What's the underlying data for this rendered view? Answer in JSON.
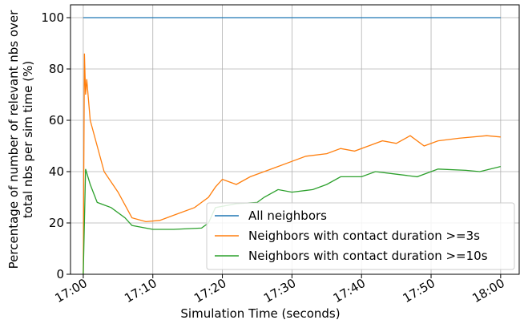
{
  "chart_data": {
    "type": "line",
    "x_label": "Simulation Time (seconds)",
    "y_label": [
      "Percentage of number of relevant nbs over",
      "total nbs per sim time (%)"
    ],
    "xlim": [
      "16:58:10",
      "18:02:40"
    ],
    "xticks": [
      "17:00",
      "17:10",
      "17:20",
      "17:30",
      "17:40",
      "17:50",
      "18:00"
    ],
    "ylim": [
      0,
      105
    ],
    "yticks": [
      0,
      20,
      40,
      60,
      80,
      100
    ],
    "grid": true,
    "legend": "lower right",
    "series": [
      {
        "name": "All neighbors",
        "color": "#1f77b4",
        "x": [
          "17:00:00",
          "18:00:00"
        ],
        "values": [
          100,
          100
        ]
      },
      {
        "name": "Neighbors with contact duration >=3s",
        "color": "#ff7f0e",
        "x": [
          "17:00:00",
          "17:00:10",
          "17:00:20",
          "17:00:30",
          "17:01:00",
          "17:02:00",
          "17:03:00",
          "17:05:00",
          "17:06:00",
          "17:07:00",
          "17:09:00",
          "17:11:00",
          "17:13:00",
          "17:16:00",
          "17:18:00",
          "17:19:00",
          "17:20:00",
          "17:22:00",
          "17:24:00",
          "17:26:00",
          "17:28:00",
          "17:30:00",
          "17:32:00",
          "17:35:00",
          "17:37:00",
          "17:39:00",
          "17:41:00",
          "17:43:00",
          "17:45:00",
          "17:47:00",
          "17:49:00",
          "17:51:00",
          "17:54:00",
          "17:58:00",
          "18:00:00"
        ],
        "values": [
          0,
          86,
          70,
          76,
          60,
          50,
          40,
          32,
          27,
          22,
          20.5,
          21,
          23,
          26,
          30,
          34,
          37,
          35,
          38,
          40,
          42,
          44,
          46,
          47,
          49,
          48,
          50,
          52,
          51,
          54,
          50,
          52,
          53,
          54,
          53.5
        ]
      },
      {
        "name": "Neighbors with contact duration >=10s",
        "color": "#2ca02c",
        "x": [
          "17:00:00",
          "17:00:20",
          "17:01:00",
          "17:02:00",
          "17:04:00",
          "17:06:00",
          "17:07:00",
          "17:10:00",
          "17:13:00",
          "17:17:00",
          "17:18:00",
          "17:19:00",
          "17:22:00",
          "17:25:00",
          "17:26:00",
          "17:28:00",
          "17:30:00",
          "17:33:00",
          "17:35:00",
          "17:37:00",
          "17:40:00",
          "17:42:00",
          "17:45:00",
          "17:48:00",
          "17:51:00",
          "17:55:00",
          "17:57:00",
          "18:00:00"
        ],
        "values": [
          0,
          41,
          35,
          28,
          26,
          22,
          19,
          17.5,
          17.5,
          18,
          20,
          26,
          27.5,
          28,
          30,
          33,
          32,
          33,
          35,
          38,
          38,
          40,
          39,
          38,
          41,
          40.5,
          40,
          42
        ]
      }
    ]
  }
}
